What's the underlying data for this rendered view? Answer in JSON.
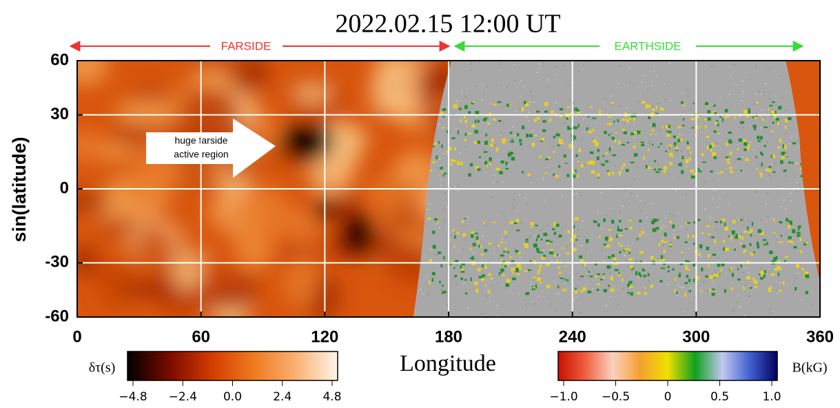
{
  "chart_data": {
    "type": "synoptic-map",
    "title": "2022.02.15  12:00 UT",
    "farside_label": "FARSIDE",
    "earthside_label": "EARTHSIDE",
    "annotation": [
      "huge farside",
      "active region"
    ],
    "x_label": "Longitude",
    "y_label": "sin(latitude)",
    "xlim": [
      0,
      360
    ],
    "xticks": [
      0,
      60,
      120,
      180,
      240,
      300,
      360
    ],
    "ylim": [
      -60,
      60
    ],
    "yscale": "sin",
    "yticks": [
      -60,
      -30,
      0,
      30,
      60
    ],
    "grid": true,
    "colorbars": [
      {
        "label": "δτ(s)",
        "lim": [
          -4.8,
          4.8
        ],
        "colors": [
          "#000000",
          "#7a0a00",
          "#d23c00",
          "#f07a20",
          "#f9b070",
          "#fff6ea"
        ],
        "ticks": [
          {
            "value": -4.8,
            "label": "−4.8"
          },
          {
            "value": -2.4,
            "label": "−2.4"
          },
          {
            "value": 0,
            "label": "0.0"
          },
          {
            "value": 2.4,
            "label": "2.4"
          },
          {
            "value": 4.8,
            "label": "4.8"
          }
        ]
      },
      {
        "label": "B(kG)",
        "lim": [
          -1,
          1
        ],
        "colors": [
          "#c81000",
          "#f06040",
          "#fbd0c0",
          "#f5a030",
          "#f0e000",
          "#10a020",
          "#c0c8f0",
          "#4060d0",
          "#000060"
        ],
        "ticks": [
          {
            "value": -1,
            "label": "−1.0"
          },
          {
            "value": -0.5,
            "label": "−0.5"
          },
          0,
          0.5,
          {
            "value": 1,
            "label": "1.0"
          }
        ]
      }
    ]
  }
}
